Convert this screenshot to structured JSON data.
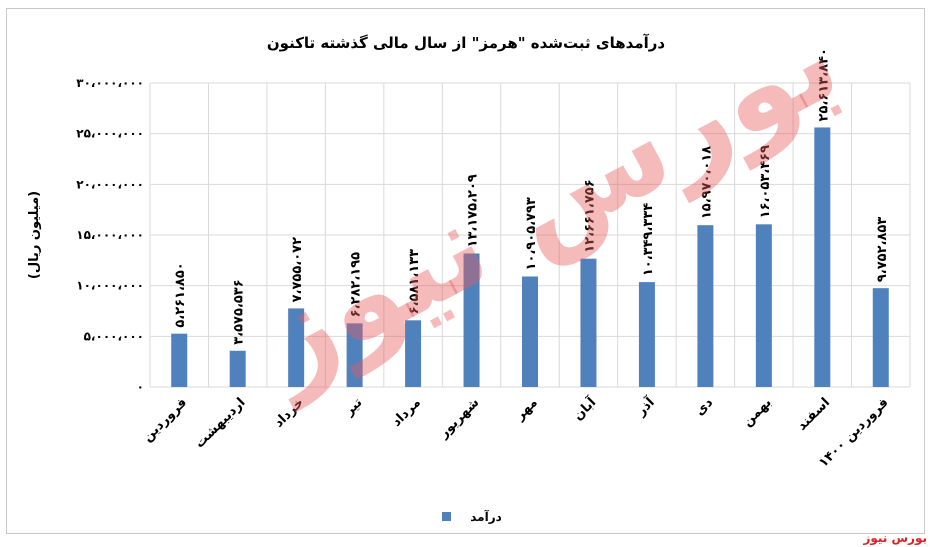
{
  "chart_data": {
    "type": "bar",
    "title": "درآمدهای ثبت‌شده \"هرمز\" از سال مالی گذشته تاکنون",
    "ylabel": "(میلیون ریال)",
    "xlabel": "",
    "ylim": [
      0,
      30000000
    ],
    "yticks": [
      0,
      5000000,
      10000000,
      15000000,
      20000000,
      25000000,
      30000000
    ],
    "ytick_labels": [
      "۰",
      "۵،۰۰۰،۰۰۰",
      "۱۰،۰۰۰،۰۰۰",
      "۱۵،۰۰۰،۰۰۰",
      "۲۰،۰۰۰،۰۰۰",
      "۲۵،۰۰۰،۰۰۰",
      "۳۰،۰۰۰،۰۰۰"
    ],
    "grid": true,
    "legend_position": "bottom",
    "bar_color": "#4f81bd",
    "categories": [
      "فروردین",
      "اردیبهشت",
      "خرداد",
      "تیر",
      "مرداد",
      "شهریور",
      "مهر",
      "آبان",
      "آذر",
      "دی",
      "بهمن",
      "اسفند",
      "فروردین ۱۴۰۰"
    ],
    "series": [
      {
        "name": "درآمد",
        "values": [
          5261850,
          3575536,
          7755072,
          6282195,
          6581133,
          13175209,
          10905793,
          12661756,
          10349334,
          15970018,
          16053469,
          25613840,
          9752853
        ],
        "data_labels": [
          "۵،۲۶۱،۸۵۰",
          "۳،۵۷۵،۵۳۶",
          "۷،۷۵۵،۰۷۲",
          "۶،۲۸۲،۱۹۵",
          "۶،۵۸۱،۱۳۳",
          "۱۳،۱۷۵،۲۰۹",
          "۱۰،۹۰۵،۷۹۳",
          "۱۲،۶۶۱،۷۵۶",
          "۱۰،۳۴۹،۳۳۴",
          "۱۵،۹۷۰،۰۱۸",
          "۱۶،۰۵۳،۴۶۹",
          "۲۵،۶۱۳،۸۴۰",
          "۹،۷۵۲،۸۵۳"
        ]
      }
    ]
  },
  "watermark": "بورس نیوز",
  "footer": {
    "brand": "بورس نیوز"
  }
}
